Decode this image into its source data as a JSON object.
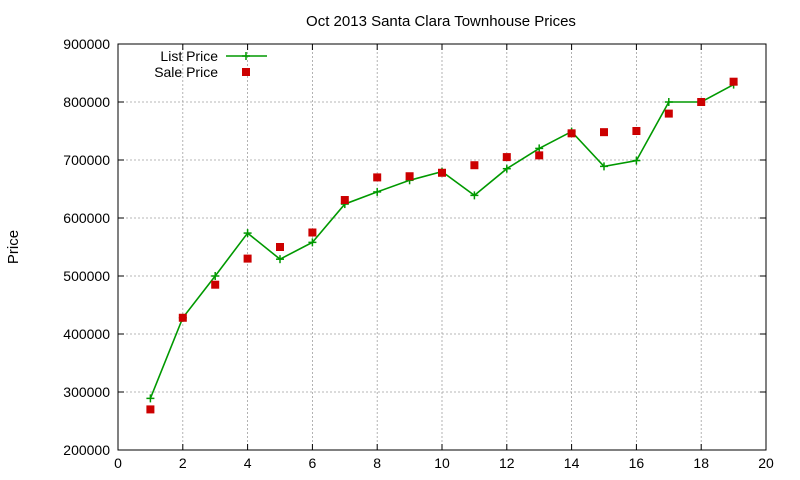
{
  "chart_data": {
    "type": "line",
    "title": "Oct 2013 Santa Clara Townhouse Prices",
    "xlabel": "",
    "ylabel": "Price",
    "xlim": [
      0,
      20
    ],
    "ylim": [
      200000,
      900000
    ],
    "xticks": [
      0,
      2,
      4,
      6,
      8,
      10,
      12,
      14,
      16,
      18,
      20
    ],
    "yticks": [
      200000,
      300000,
      400000,
      500000,
      600000,
      700000,
      800000,
      900000
    ],
    "grid": true,
    "legend_position": "top-left",
    "series": [
      {
        "name": "List Price",
        "style": "line-plus",
        "color": "#009900",
        "x": [
          1,
          2,
          3,
          4,
          5,
          6,
          7,
          8,
          9,
          10,
          11,
          12,
          13,
          14,
          15,
          16,
          17,
          18,
          19
        ],
        "values": [
          289000,
          428000,
          500000,
          574000,
          529000,
          558000,
          624000,
          645000,
          665000,
          680000,
          639000,
          685000,
          720000,
          749000,
          689000,
          699000,
          800000,
          800000,
          830000
        ]
      },
      {
        "name": "Sale Price",
        "style": "points-square",
        "color": "#cc0000",
        "x": [
          1,
          2,
          3,
          4,
          5,
          6,
          7,
          8,
          9,
          10,
          11,
          12,
          13,
          14,
          15,
          16,
          17,
          18,
          19
        ],
        "values": [
          270000,
          428000,
          485000,
          530000,
          550000,
          575000,
          631000,
          670000,
          672000,
          678000,
          691000,
          705000,
          708000,
          746000,
          748000,
          750000,
          780000,
          800000,
          835000
        ]
      }
    ]
  }
}
